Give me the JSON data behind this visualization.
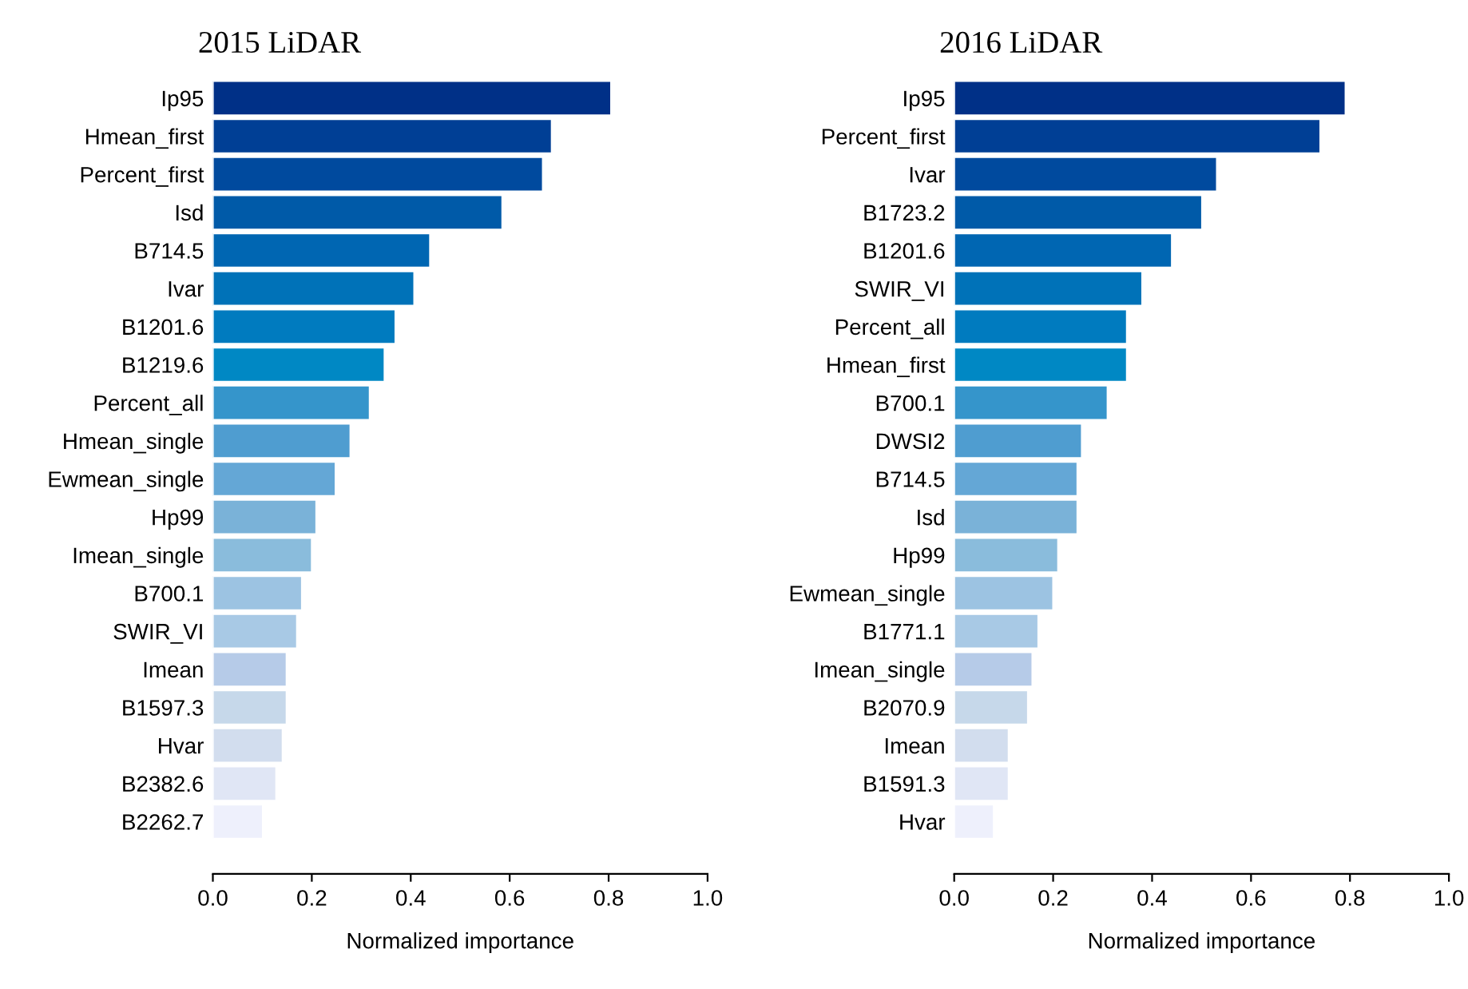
{
  "chart_data": [
    {
      "type": "bar",
      "title": "2015 LiDAR",
      "xlabel": "Normalized importance",
      "orientation": "horizontal",
      "categories": [
        "Ip95",
        "Hmean_first",
        "Percent_first",
        "Isd",
        "B714.5",
        "Ivar",
        "B1201.6",
        "B1219.6",
        "Percent_all",
        "Hmean_single",
        "Ewmean_single",
        "Hp99",
        "Imean_single",
        "B700.1",
        "SWIR_VI",
        "Imean",
        "B1597.3",
        "Hvar",
        "B2382.6",
        "B2262.7"
      ],
      "values": [
        0.805,
        0.685,
        0.667,
        0.585,
        0.439,
        0.407,
        0.369,
        0.347,
        0.317,
        0.278,
        0.248,
        0.209,
        0.2,
        0.18,
        0.17,
        0.149,
        0.149,
        0.141,
        0.128,
        0.101
      ],
      "colors": [
        "#003087",
        "#003f95",
        "#004a9e",
        "#005aa8",
        "#0066b2",
        "#0072b8",
        "#007bbf",
        "#0088c4",
        "#3595cb",
        "#4f9dd0",
        "#64a7d6",
        "#7ab2d8",
        "#8abcdc",
        "#9cc3e2",
        "#a8c9e5",
        "#b6cbe8",
        "#c6d8ea",
        "#d2ddee",
        "#e0e6f5",
        "#eef0fc"
      ],
      "xlim": [
        0,
        1
      ],
      "xticks": [
        {
          "value": 0,
          "label": "0.0"
        },
        {
          "value": 0.2,
          "label": "0.2"
        },
        {
          "value": 0.4,
          "label": "0.4"
        },
        {
          "value": 0.6,
          "label": "0.6"
        },
        {
          "value": 0.8,
          "label": "0.8"
        },
        {
          "value": 1,
          "label": "1.0"
        }
      ],
      "grid": false,
      "legend": false
    },
    {
      "type": "bar",
      "title": "2016 LiDAR",
      "xlabel": "Normalized importance",
      "orientation": "horizontal",
      "categories": [
        "Ip95",
        "Percent_first",
        "Ivar",
        "B1723.2",
        "B1201.6",
        "SWIR_VI",
        "Percent_all",
        "Hmean_first",
        "B700.1",
        "DWSI2",
        "B714.5",
        "Isd",
        "Hp99",
        "Ewmean_single",
        "B1771.1",
        "Imean_single",
        "B2070.9",
        "Imean",
        "B1591.3",
        "Hvar"
      ],
      "values": [
        0.791,
        0.74,
        0.531,
        0.501,
        0.44,
        0.38,
        0.349,
        0.349,
        0.31,
        0.258,
        0.249,
        0.249,
        0.21,
        0.2,
        0.17,
        0.158,
        0.149,
        0.11,
        0.11,
        0.08
      ],
      "colors": [
        "#003087",
        "#003f95",
        "#004a9e",
        "#005aa8",
        "#0066b2",
        "#0072b8",
        "#007bbf",
        "#0088c4",
        "#3595cb",
        "#4f9dd0",
        "#64a7d6",
        "#7ab2d8",
        "#8abcdc",
        "#9cc3e2",
        "#a8c9e5",
        "#b6cbe8",
        "#c6d8ea",
        "#d2ddee",
        "#e0e6f5",
        "#eef0fc"
      ],
      "xlim": [
        0,
        1
      ],
      "xticks": [
        {
          "value": 0,
          "label": "0.0"
        },
        {
          "value": 0.2,
          "label": "0.2"
        },
        {
          "value": 0.4,
          "label": "0.4"
        },
        {
          "value": 0.6,
          "label": "0.6"
        },
        {
          "value": 0.8,
          "label": "0.8"
        },
        {
          "value": 1,
          "label": "1.0"
        }
      ],
      "grid": false,
      "legend": false
    }
  ]
}
